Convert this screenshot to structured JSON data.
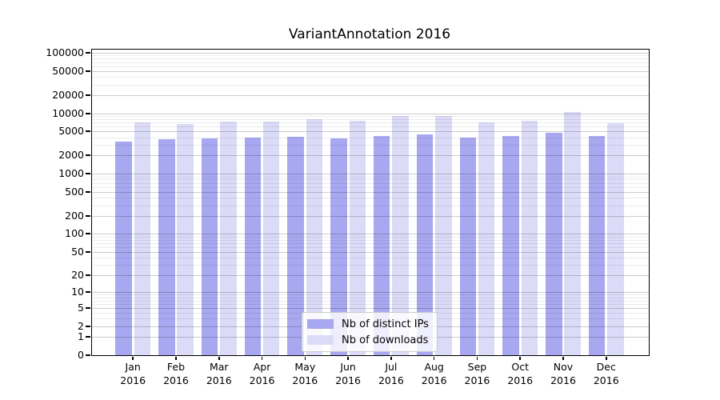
{
  "chart_data": {
    "type": "bar",
    "title": "VariantAnnotation 2016",
    "x": {
      "months": [
        "Jan",
        "Feb",
        "Mar",
        "Apr",
        "May",
        "Jun",
        "Jul",
        "Aug",
        "Sep",
        "Oct",
        "Nov",
        "Dec"
      ],
      "year": "2016"
    },
    "series": [
      {
        "name": "Nb of distinct IPs",
        "color": "#a8a8f0",
        "values": [
          3450,
          3780,
          3890,
          4010,
          4140,
          3870,
          4270,
          4440,
          3980,
          4180,
          4720,
          4180
        ]
      },
      {
        "name": "Nb of downloads",
        "color": "#dbdbf8",
        "values": [
          7000,
          6670,
          7220,
          7220,
          8070,
          7440,
          8930,
          8930,
          7090,
          7530,
          10620,
          6890
        ]
      }
    ],
    "y_axis": {
      "scale": "log10(value+1)",
      "ticks": [
        100000,
        50000,
        20000,
        10000,
        5000,
        2000,
        1000,
        500,
        200,
        100,
        50,
        20,
        10,
        5,
        2,
        1,
        0
      ],
      "ylim": [
        0,
        115000
      ],
      "grid": "on"
    },
    "legend_position": "bottom-center",
    "background": "#ffffff"
  }
}
